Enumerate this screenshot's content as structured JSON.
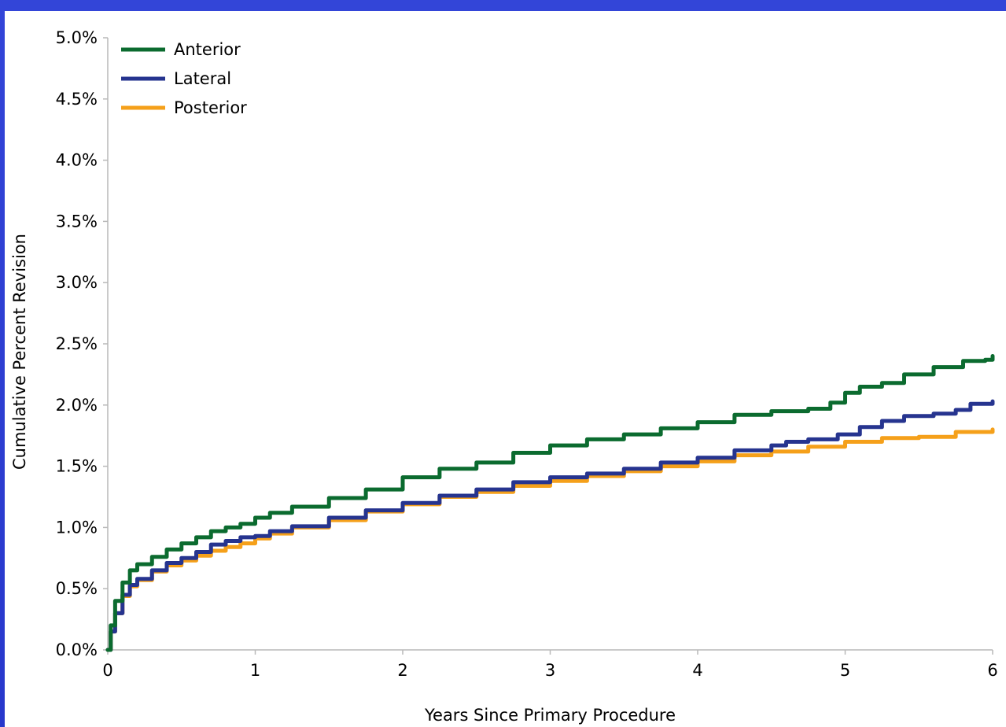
{
  "chart_data": {
    "type": "line",
    "title": "",
    "xlabel": "Years Since Primary Procedure",
    "ylabel": "Cumulative Percent Revision",
    "xlim": [
      0,
      6
    ],
    "ylim": [
      0,
      5
    ],
    "x_ticks": [
      "0",
      "1",
      "2",
      "3",
      "4",
      "5",
      "6"
    ],
    "y_ticks": [
      "0.0%",
      "0.5%",
      "1.0%",
      "1.5%",
      "2.0%",
      "2.5%",
      "3.0%",
      "3.5%",
      "4.0%",
      "4.5%",
      "5.0%"
    ],
    "grid": false,
    "legend_position": "top-left",
    "series": [
      {
        "name": "Anterior",
        "color": "#0b6b2f",
        "points": [
          [
            0,
            0
          ],
          [
            0.02,
            0.2
          ],
          [
            0.05,
            0.4
          ],
          [
            0.1,
            0.55
          ],
          [
            0.15,
            0.65
          ],
          [
            0.2,
            0.7
          ],
          [
            0.3,
            0.76
          ],
          [
            0.4,
            0.82
          ],
          [
            0.5,
            0.87
          ],
          [
            0.6,
            0.92
          ],
          [
            0.7,
            0.97
          ],
          [
            0.8,
            1.0
          ],
          [
            0.9,
            1.03
          ],
          [
            1.0,
            1.08
          ],
          [
            1.1,
            1.12
          ],
          [
            1.25,
            1.17
          ],
          [
            1.5,
            1.24
          ],
          [
            1.75,
            1.31
          ],
          [
            2.0,
            1.41
          ],
          [
            2.25,
            1.48
          ],
          [
            2.5,
            1.53
          ],
          [
            2.75,
            1.61
          ],
          [
            3.0,
            1.67
          ],
          [
            3.25,
            1.72
          ],
          [
            3.5,
            1.76
          ],
          [
            3.75,
            1.81
          ],
          [
            4.0,
            1.86
          ],
          [
            4.25,
            1.92
          ],
          [
            4.5,
            1.95
          ],
          [
            4.75,
            1.97
          ],
          [
            4.9,
            2.02
          ],
          [
            5.0,
            2.1
          ],
          [
            5.1,
            2.15
          ],
          [
            5.25,
            2.18
          ],
          [
            5.4,
            2.25
          ],
          [
            5.6,
            2.31
          ],
          [
            5.8,
            2.36
          ],
          [
            5.95,
            2.37
          ],
          [
            6.0,
            2.4
          ]
        ]
      },
      {
        "name": "Lateral",
        "color": "#26348f",
        "points": [
          [
            0,
            0
          ],
          [
            0.02,
            0.15
          ],
          [
            0.05,
            0.3
          ],
          [
            0.1,
            0.45
          ],
          [
            0.15,
            0.53
          ],
          [
            0.2,
            0.58
          ],
          [
            0.3,
            0.65
          ],
          [
            0.4,
            0.71
          ],
          [
            0.5,
            0.75
          ],
          [
            0.6,
            0.8
          ],
          [
            0.7,
            0.86
          ],
          [
            0.8,
            0.89
          ],
          [
            0.9,
            0.92
          ],
          [
            1.0,
            0.93
          ],
          [
            1.1,
            0.97
          ],
          [
            1.25,
            1.01
          ],
          [
            1.5,
            1.08
          ],
          [
            1.75,
            1.14
          ],
          [
            2.0,
            1.2
          ],
          [
            2.25,
            1.26
          ],
          [
            2.5,
            1.31
          ],
          [
            2.75,
            1.37
          ],
          [
            3.0,
            1.41
          ],
          [
            3.25,
            1.44
          ],
          [
            3.5,
            1.48
          ],
          [
            3.75,
            1.53
          ],
          [
            4.0,
            1.57
          ],
          [
            4.25,
            1.63
          ],
          [
            4.5,
            1.67
          ],
          [
            4.6,
            1.7
          ],
          [
            4.75,
            1.72
          ],
          [
            4.95,
            1.76
          ],
          [
            5.1,
            1.82
          ],
          [
            5.25,
            1.87
          ],
          [
            5.4,
            1.91
          ],
          [
            5.6,
            1.93
          ],
          [
            5.75,
            1.96
          ],
          [
            5.85,
            2.01
          ],
          [
            6.0,
            2.03
          ]
        ]
      },
      {
        "name": "Posterior",
        "color": "#f5a01a",
        "points": [
          [
            0,
            0
          ],
          [
            0.02,
            0.15
          ],
          [
            0.05,
            0.3
          ],
          [
            0.1,
            0.44
          ],
          [
            0.15,
            0.52
          ],
          [
            0.2,
            0.57
          ],
          [
            0.3,
            0.64
          ],
          [
            0.4,
            0.69
          ],
          [
            0.5,
            0.73
          ],
          [
            0.6,
            0.77
          ],
          [
            0.7,
            0.81
          ],
          [
            0.8,
            0.84
          ],
          [
            0.9,
            0.87
          ],
          [
            1.0,
            0.91
          ],
          [
            1.1,
            0.95
          ],
          [
            1.25,
            1.0
          ],
          [
            1.5,
            1.06
          ],
          [
            1.75,
            1.13
          ],
          [
            2.0,
            1.19
          ],
          [
            2.25,
            1.25
          ],
          [
            2.5,
            1.29
          ],
          [
            2.75,
            1.34
          ],
          [
            3.0,
            1.38
          ],
          [
            3.25,
            1.42
          ],
          [
            3.5,
            1.46
          ],
          [
            3.75,
            1.5
          ],
          [
            4.0,
            1.54
          ],
          [
            4.25,
            1.59
          ],
          [
            4.5,
            1.62
          ],
          [
            4.75,
            1.66
          ],
          [
            5.0,
            1.7
          ],
          [
            5.25,
            1.73
          ],
          [
            5.5,
            1.74
          ],
          [
            5.75,
            1.78
          ],
          [
            6.0,
            1.8
          ]
        ]
      }
    ]
  }
}
